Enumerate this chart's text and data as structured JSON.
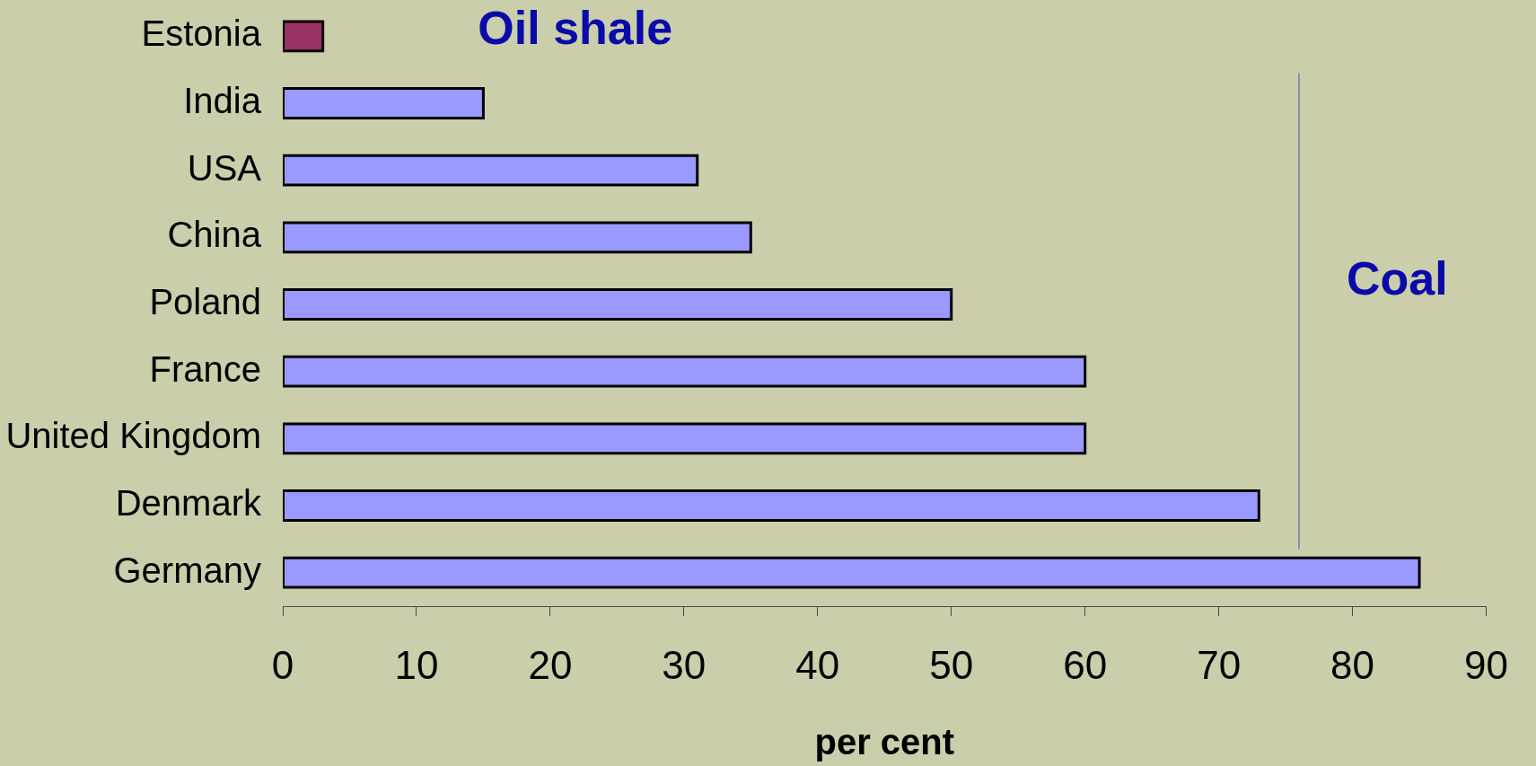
{
  "chart_data": {
    "type": "bar",
    "orientation": "horizontal",
    "categories": [
      "Estonia",
      "India",
      "USA",
      "China",
      "Poland",
      "France",
      "United Kingdom",
      "Denmark",
      "Germany"
    ],
    "values": [
      3,
      15,
      31,
      35,
      50,
      60,
      60,
      73,
      85
    ],
    "colors": [
      "#993366",
      "#9999ff",
      "#9999ff",
      "#9999ff",
      "#9999ff",
      "#9999ff",
      "#9999ff",
      "#9999ff",
      "#9999ff"
    ],
    "xlim": [
      0,
      90
    ],
    "xticks": [
      0,
      10,
      20,
      30,
      40,
      50,
      60,
      70,
      80,
      90
    ],
    "xlabel": "per cent",
    "ref_lines": [
      {
        "axis": "x",
        "value": 76,
        "color": "#8c90ac"
      }
    ],
    "annotations": [
      "Oil shale",
      "Coal"
    ]
  }
}
